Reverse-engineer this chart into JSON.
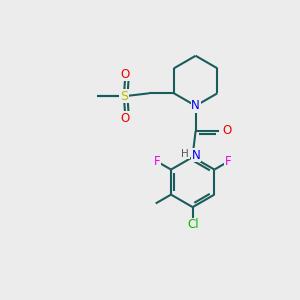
{
  "bg_color": "#ececec",
  "atom_colors": {
    "N": "#0000ee",
    "O": "#ee0000",
    "S": "#bbbb00",
    "F": "#ee00ee",
    "Cl": "#00bb00",
    "C": "#1a5c5c",
    "H": "#555555"
  },
  "bond_color": "#1a5c5c",
  "bond_width": 1.5,
  "figsize": [
    3.0,
    3.0
  ],
  "dpi": 100
}
